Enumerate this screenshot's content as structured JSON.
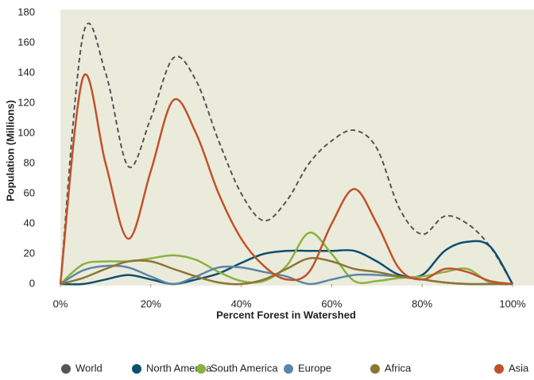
{
  "chart_data": {
    "type": "line",
    "xlabel": "Percent Forest in Watershed",
    "ylabel": "Population (Millions)",
    "x": [
      0,
      5,
      10,
      15,
      20,
      25,
      30,
      35,
      40,
      45,
      50,
      55,
      60,
      65,
      70,
      75,
      80,
      85,
      90,
      95,
      100
    ],
    "xlim": [
      0,
      100
    ],
    "xticks": [
      {
        "value": 0,
        "label": "0%"
      },
      {
        "value": 20,
        "label": "20%"
      },
      {
        "value": 40,
        "label": "40%"
      },
      {
        "value": 60,
        "label": "60%"
      },
      {
        "value": 80,
        "label": "80%"
      },
      {
        "value": 100,
        "label": "100%"
      }
    ],
    "ylim": [
      0,
      180
    ],
    "yticks": [
      0,
      20,
      40,
      60,
      80,
      100,
      120,
      140,
      160,
      180
    ],
    "grid": false,
    "legend": "bottom",
    "series": [
      {
        "name": "World",
        "color": "#555555",
        "dashed": true,
        "values": [
          0,
          165,
          140,
          78,
          110,
          150,
          135,
          95,
          60,
          42,
          55,
          80,
          95,
          102,
          90,
          50,
          33,
          45,
          40,
          25,
          0
        ]
      },
      {
        "name": "North America",
        "color": "#0d4f6e",
        "values": [
          0,
          0,
          3,
          6,
          3,
          0,
          3,
          7,
          14,
          20,
          22,
          22,
          22,
          22,
          15,
          6,
          6,
          22,
          28,
          25,
          0
        ]
      },
      {
        "name": "South America",
        "color": "#8ab23f",
        "values": [
          0,
          13,
          15,
          15,
          17,
          19,
          16,
          8,
          2,
          2,
          12,
          34,
          20,
          2,
          2,
          4,
          5,
          8,
          10,
          1,
          0
        ]
      },
      {
        "name": "Europe",
        "color": "#5b86a8",
        "values": [
          0,
          9,
          12,
          11,
          5,
          0,
          5,
          11,
          11,
          8,
          5,
          0,
          3,
          6,
          6,
          5,
          3,
          1,
          0,
          0,
          0
        ]
      },
      {
        "name": "Africa",
        "color": "#8c7533",
        "values": [
          0,
          4,
          10,
          15,
          15,
          10,
          5,
          1,
          0,
          3,
          10,
          17,
          15,
          10,
          8,
          5,
          3,
          1,
          0,
          0,
          0
        ]
      },
      {
        "name": "Asia",
        "color": "#c0522a",
        "values": [
          0,
          137,
          80,
          30,
          75,
          122,
          100,
          60,
          30,
          12,
          3,
          8,
          40,
          63,
          40,
          10,
          3,
          10,
          8,
          2,
          0
        ]
      }
    ]
  }
}
